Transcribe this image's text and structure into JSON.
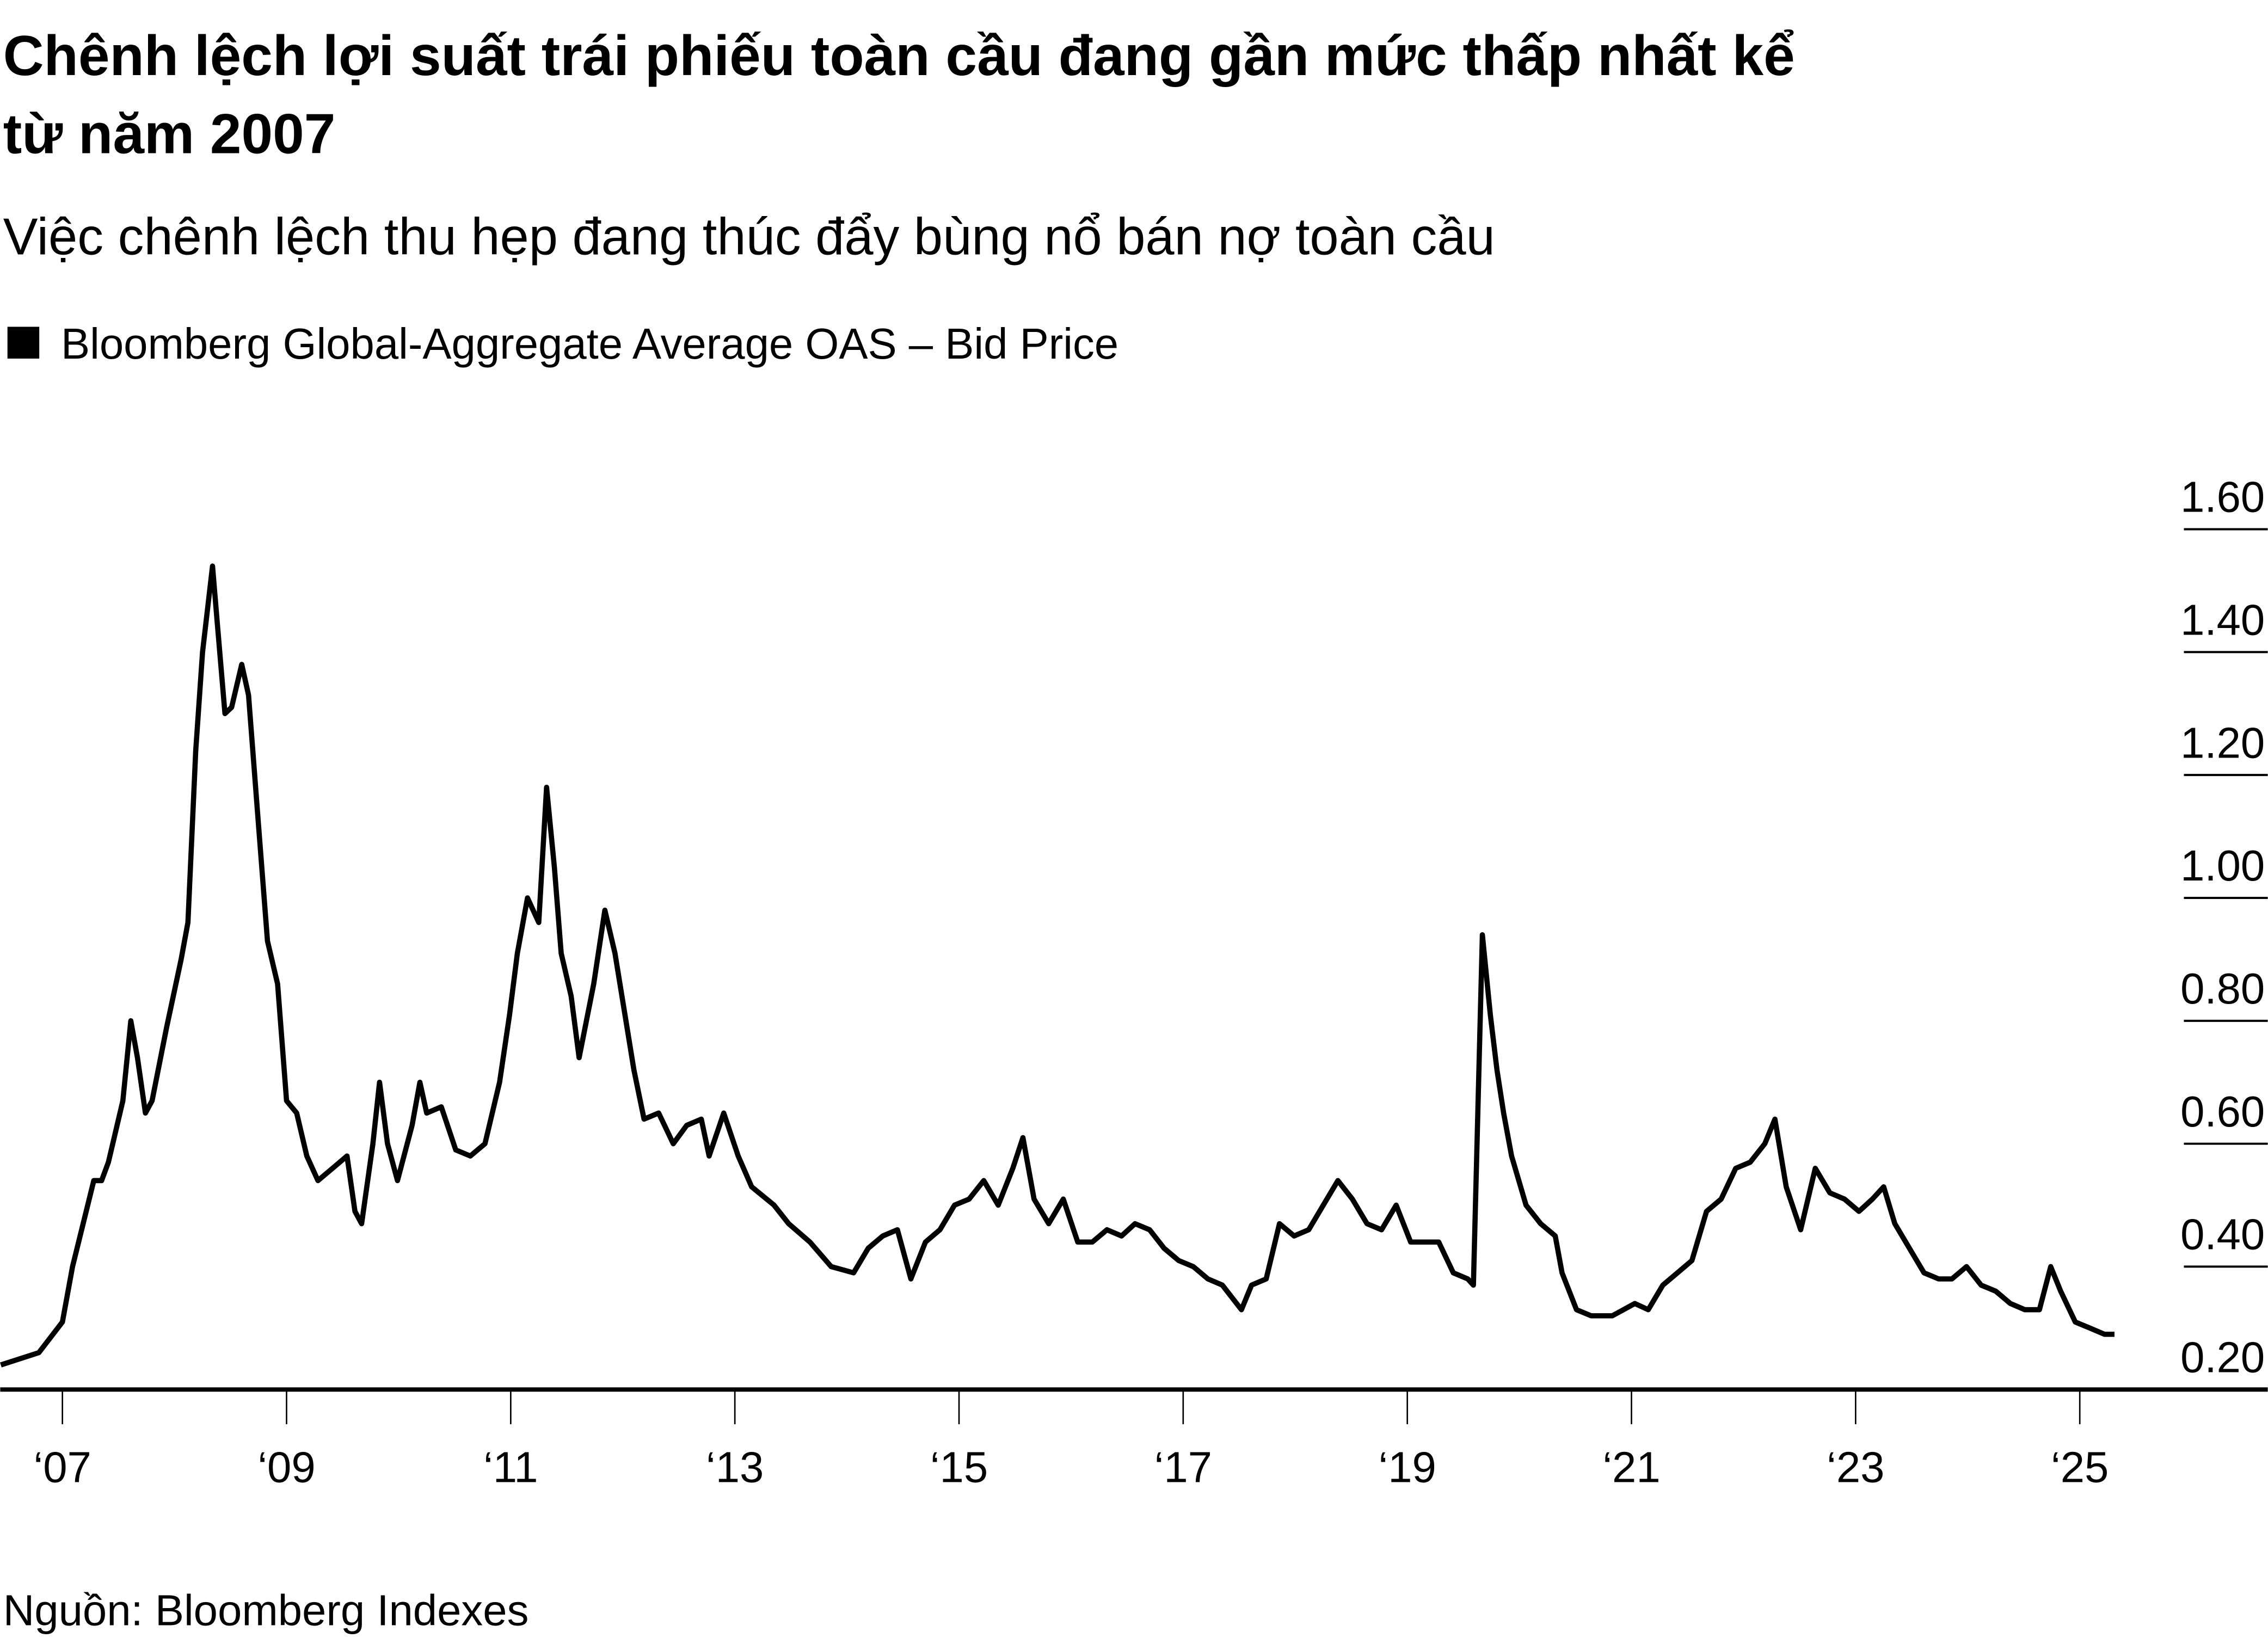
{
  "title_line1": "Chênh lệch lợi suất trái phiếu toàn cầu đang gần mức thấp nhất kể",
  "title_line2": "từ năm 2007",
  "subtitle": "Việc chênh lệch thu hẹp đang thúc đẩy bùng nổ bán nợ toàn cầu",
  "source": "Nguồn: Bloomberg Indexes",
  "chart_data": {
    "type": "line",
    "title": "Chênh lệch lợi suất trái phiếu toàn cầu đang gần mức thấp nhất kể từ năm 2007",
    "legend": "top-left",
    "series": [
      {
        "name": "Bloomberg Global-Aggregate Average OAS – Bid Price",
        "color": "#000000",
        "points": [
          [
            2006.45,
            0.24
          ],
          [
            2006.79,
            0.26
          ],
          [
            2007.0,
            0.31
          ],
          [
            2007.09,
            0.4
          ],
          [
            2007.28,
            0.54
          ],
          [
            2007.35,
            0.54
          ],
          [
            2007.41,
            0.57
          ],
          [
            2007.54,
            0.67
          ],
          [
            2007.61,
            0.8
          ],
          [
            2007.67,
            0.74
          ],
          [
            2007.74,
            0.65
          ],
          [
            2007.8,
            0.67
          ],
          [
            2007.93,
            0.79
          ],
          [
            2008.06,
            0.9
          ],
          [
            2008.12,
            0.96
          ],
          [
            2008.19,
            1.24
          ],
          [
            2008.25,
            1.4
          ],
          [
            2008.34,
            1.54
          ],
          [
            2008.38,
            1.45
          ],
          [
            2008.45,
            1.3
          ],
          [
            2008.51,
            1.31
          ],
          [
            2008.6,
            1.38
          ],
          [
            2008.66,
            1.33
          ],
          [
            2008.74,
            1.14
          ],
          [
            2008.83,
            0.93
          ],
          [
            2008.92,
            0.86
          ],
          [
            2009.0,
            0.67
          ],
          [
            2009.09,
            0.65
          ],
          [
            2009.18,
            0.58
          ],
          [
            2009.28,
            0.54
          ],
          [
            2009.41,
            0.56
          ],
          [
            2009.54,
            0.58
          ],
          [
            2009.61,
            0.49
          ],
          [
            2009.67,
            0.47
          ],
          [
            2009.77,
            0.6
          ],
          [
            2009.83,
            0.7
          ],
          [
            2009.9,
            0.6
          ],
          [
            2009.99,
            0.54
          ],
          [
            2010.12,
            0.63
          ],
          [
            2010.19,
            0.7
          ],
          [
            2010.25,
            0.65
          ],
          [
            2010.38,
            0.66
          ],
          [
            2010.51,
            0.59
          ],
          [
            2010.64,
            0.58
          ],
          [
            2010.77,
            0.6
          ],
          [
            2010.9,
            0.7
          ],
          [
            2010.99,
            0.81
          ],
          [
            2011.06,
            0.91
          ],
          [
            2011.15,
            1.0
          ],
          [
            2011.25,
            0.96
          ],
          [
            2011.32,
            1.18
          ],
          [
            2011.39,
            1.05
          ],
          [
            2011.45,
            0.91
          ],
          [
            2011.54,
            0.84
          ],
          [
            2011.61,
            0.74
          ],
          [
            2011.74,
            0.86
          ],
          [
            2011.84,
            0.98
          ],
          [
            2011.93,
            0.91
          ],
          [
            2012.02,
            0.81
          ],
          [
            2012.1,
            0.72
          ],
          [
            2012.19,
            0.64
          ],
          [
            2012.32,
            0.65
          ],
          [
            2012.45,
            0.6
          ],
          [
            2012.57,
            0.63
          ],
          [
            2012.7,
            0.64
          ],
          [
            2012.77,
            0.58
          ],
          [
            2012.9,
            0.65
          ],
          [
            2013.03,
            0.58
          ],
          [
            2013.15,
            0.53
          ],
          [
            2013.35,
            0.5
          ],
          [
            2013.48,
            0.47
          ],
          [
            2013.67,
            0.44
          ],
          [
            2013.86,
            0.4
          ],
          [
            2014.06,
            0.39
          ],
          [
            2014.19,
            0.43
          ],
          [
            2014.32,
            0.45
          ],
          [
            2014.45,
            0.46
          ],
          [
            2014.57,
            0.38
          ],
          [
            2014.7,
            0.44
          ],
          [
            2014.83,
            0.46
          ],
          [
            2014.96,
            0.5
          ],
          [
            2015.09,
            0.51
          ],
          [
            2015.22,
            0.54
          ],
          [
            2015.35,
            0.5
          ],
          [
            2015.48,
            0.56
          ],
          [
            2015.57,
            0.61
          ],
          [
            2015.67,
            0.51
          ],
          [
            2015.8,
            0.47
          ],
          [
            2015.93,
            0.51
          ],
          [
            2016.06,
            0.44
          ],
          [
            2016.19,
            0.44
          ],
          [
            2016.32,
            0.46
          ],
          [
            2016.45,
            0.45
          ],
          [
            2016.57,
            0.47
          ],
          [
            2016.7,
            0.46
          ],
          [
            2016.83,
            0.43
          ],
          [
            2016.96,
            0.41
          ],
          [
            2017.09,
            0.4
          ],
          [
            2017.22,
            0.38
          ],
          [
            2017.35,
            0.37
          ],
          [
            2017.52,
            0.33
          ],
          [
            2017.61,
            0.37
          ],
          [
            2017.74,
            0.38
          ],
          [
            2017.86,
            0.47
          ],
          [
            2017.99,
            0.45
          ],
          [
            2018.12,
            0.46
          ],
          [
            2018.25,
            0.5
          ],
          [
            2018.38,
            0.54
          ],
          [
            2018.51,
            0.51
          ],
          [
            2018.64,
            0.47
          ],
          [
            2018.77,
            0.46
          ],
          [
            2018.9,
            0.5
          ],
          [
            2019.03,
            0.44
          ],
          [
            2019.15,
            0.44
          ],
          [
            2019.28,
            0.44
          ],
          [
            2019.41,
            0.39
          ],
          [
            2019.54,
            0.38
          ],
          [
            2019.59,
            0.37
          ],
          [
            2019.67,
            0.94
          ],
          [
            2019.74,
            0.81
          ],
          [
            2019.8,
            0.72
          ],
          [
            2019.86,
            0.65
          ],
          [
            2019.93,
            0.58
          ],
          [
            2020.06,
            0.5
          ],
          [
            2020.19,
            0.47
          ],
          [
            2020.32,
            0.45
          ],
          [
            2020.38,
            0.39
          ],
          [
            2020.51,
            0.33
          ],
          [
            2020.64,
            0.32
          ],
          [
            2020.83,
            0.32
          ],
          [
            2021.03,
            0.34
          ],
          [
            2021.15,
            0.33
          ],
          [
            2021.28,
            0.37
          ],
          [
            2021.41,
            0.39
          ],
          [
            2021.54,
            0.41
          ],
          [
            2021.67,
            0.49
          ],
          [
            2021.8,
            0.51
          ],
          [
            2021.93,
            0.56
          ],
          [
            2022.06,
            0.57
          ],
          [
            2022.19,
            0.6
          ],
          [
            2022.28,
            0.64
          ],
          [
            2022.38,
            0.53
          ],
          [
            2022.51,
            0.46
          ],
          [
            2022.64,
            0.56
          ],
          [
            2022.77,
            0.52
          ],
          [
            2022.9,
            0.51
          ],
          [
            2023.03,
            0.49
          ],
          [
            2023.15,
            0.51
          ],
          [
            2023.25,
            0.53
          ],
          [
            2023.35,
            0.47
          ],
          [
            2023.48,
            0.43
          ],
          [
            2023.61,
            0.39
          ],
          [
            2023.74,
            0.38
          ],
          [
            2023.86,
            0.38
          ],
          [
            2023.99,
            0.4
          ],
          [
            2024.12,
            0.37
          ],
          [
            2024.25,
            0.36
          ],
          [
            2024.38,
            0.34
          ],
          [
            2024.51,
            0.33
          ],
          [
            2024.64,
            0.33
          ],
          [
            2024.74,
            0.4
          ],
          [
            2024.83,
            0.36
          ],
          [
            2024.96,
            0.31
          ],
          [
            2025.09,
            0.3
          ],
          [
            2025.22,
            0.29
          ],
          [
            2025.31,
            0.29
          ]
        ]
      }
    ],
    "x_ticks": [
      {
        "value": 2007,
        "label": "‘07"
      },
      {
        "value": 2009,
        "label": "‘09"
      },
      {
        "value": 2011,
        "label": "‘11"
      },
      {
        "value": 2013,
        "label": "‘13"
      },
      {
        "value": 2015,
        "label": "‘15"
      },
      {
        "value": 2017,
        "label": "‘17"
      },
      {
        "value": 2019,
        "label": "‘19"
      },
      {
        "value": 2021,
        "label": "‘21"
      },
      {
        "value": 2023,
        "label": "‘23"
      },
      {
        "value": 2025,
        "label": "‘25"
      }
    ],
    "y_ticks": [
      {
        "value": 1.6,
        "label": "1.60"
      },
      {
        "value": 1.4,
        "label": "1.40"
      },
      {
        "value": 1.2,
        "label": "1.20"
      },
      {
        "value": 1.0,
        "label": "1.00"
      },
      {
        "value": 0.8,
        "label": "0.80"
      },
      {
        "value": 0.6,
        "label": "0.60"
      },
      {
        "value": 0.4,
        "label": "0.40"
      },
      {
        "value": 0.2,
        "label": "0.20"
      }
    ],
    "xlim": [
      2006.45,
      2026.7
    ],
    "ylim": [
      0.2,
      1.6
    ],
    "y_axis_side": "right",
    "grid": "short right-side tick lines only"
  }
}
